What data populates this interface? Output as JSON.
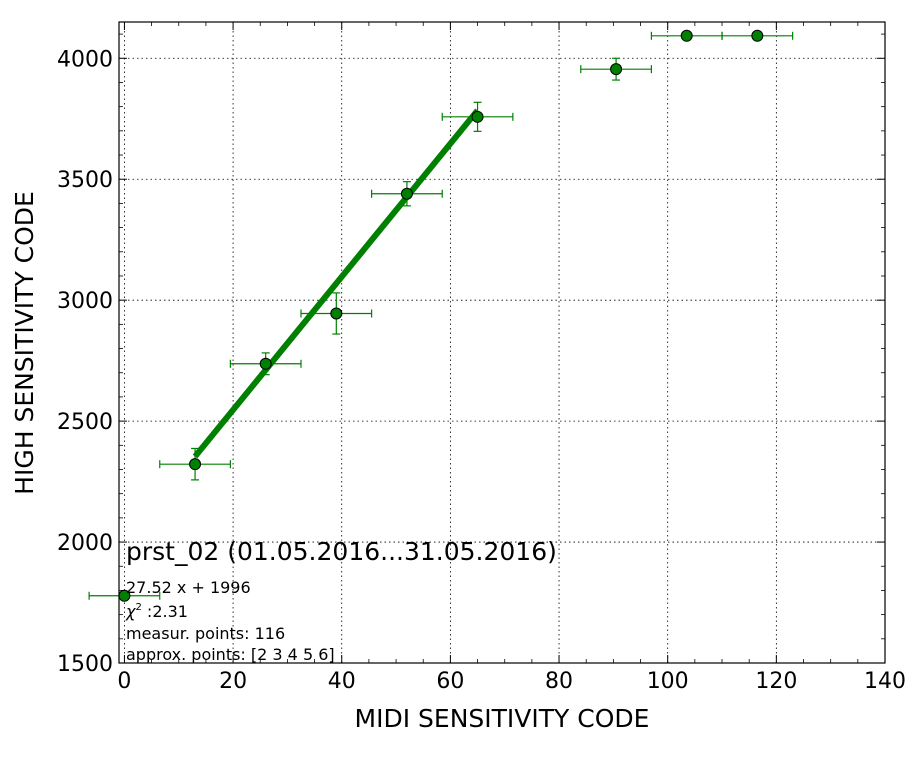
{
  "chart_data": {
    "type": "scatter",
    "title": "prst_02 (01.05.2016...31.05.2016)",
    "xlabel": "MIDI SENSITIVITY CODE",
    "ylabel": "HIGH SENSITIVITY CODE",
    "xlim": [
      -1,
      140
    ],
    "ylim": [
      1500,
      4150
    ],
    "xticks": [
      0,
      20,
      40,
      60,
      80,
      100,
      120,
      140
    ],
    "yticks": [
      1500,
      2000,
      2500,
      3000,
      3500,
      4000
    ],
    "grid": true,
    "marker_color": "#008000",
    "line_color": "#008000",
    "series": [
      {
        "points": [
          {
            "x": 0,
            "y": 1778,
            "xerr": 6.5,
            "yerr": 0
          },
          {
            "x": 13,
            "y": 2322,
            "xerr": 6.5,
            "yerr": 65
          },
          {
            "x": 26,
            "y": 2737,
            "xerr": 6.5,
            "yerr": 45
          },
          {
            "x": 39,
            "y": 2945,
            "xerr": 6.5,
            "yerr": 85
          },
          {
            "x": 52,
            "y": 3440,
            "xerr": 6.5,
            "yerr": 50
          },
          {
            "x": 65,
            "y": 3758,
            "xerr": 6.5,
            "yerr": 60
          },
          {
            "x": 90.5,
            "y": 3955,
            "xerr": 6.5,
            "yerr": 45
          },
          {
            "x": 103.5,
            "y": 4093,
            "xerr": 6.5,
            "yerr": 0
          },
          {
            "x": 116.5,
            "y": 4093,
            "xerr": 6.5,
            "yerr": 0
          }
        ]
      }
    ],
    "fit": {
      "slope": 27.52,
      "intercept": 1996,
      "x_range": [
        13,
        65
      ]
    },
    "annotations": {
      "equation": "27.52 x + 1996",
      "chi2_symbol": "χ",
      "chi2_power": "2",
      "chi2_value": " :2.31",
      "measur_points": "measur. points: 116",
      "approx_points": "approx. points: [2 3 4 5 6]"
    }
  }
}
